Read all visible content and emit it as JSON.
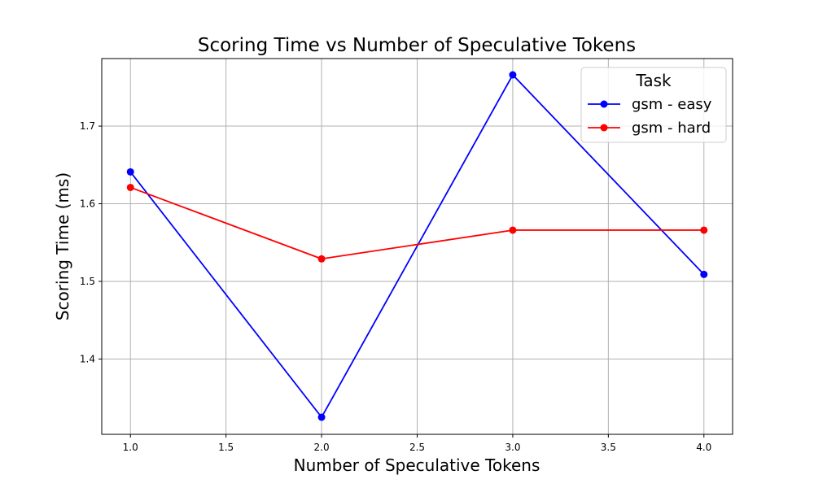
{
  "chart_data": {
    "type": "line",
    "title": "Scoring Time vs Number of Speculative Tokens",
    "xlabel": "Number of Speculative Tokens",
    "ylabel": "Scoring Time (ms)",
    "xlim": [
      0.85,
      4.15
    ],
    "ylim": [
      1.303,
      1.787
    ],
    "xticks": [
      1.0,
      1.5,
      2.0,
      2.5,
      3.0,
      3.5,
      4.0
    ],
    "xtick_labels": [
      "1.0",
      "1.5",
      "2.0",
      "2.5",
      "3.0",
      "3.5",
      "4.0"
    ],
    "yticks": [
      1.4,
      1.5,
      1.6,
      1.7
    ],
    "ytick_labels": [
      "1.4",
      "1.5",
      "1.6",
      "1.7"
    ],
    "grid": true,
    "legend": {
      "title": "Task",
      "placement": "top-right"
    },
    "series": [
      {
        "name": "gsm - easy",
        "color": "#0000ff",
        "marker": "circle",
        "x": [
          1.0,
          2.0,
          3.0,
          4.0
        ],
        "y": [
          1.641,
          1.325,
          1.766,
          1.509
        ]
      },
      {
        "name": "gsm - hard",
        "color": "#ff0000",
        "marker": "circle",
        "x": [
          1.0,
          2.0,
          3.0,
          4.0
        ],
        "y": [
          1.621,
          1.529,
          1.566,
          1.566
        ]
      }
    ]
  }
}
